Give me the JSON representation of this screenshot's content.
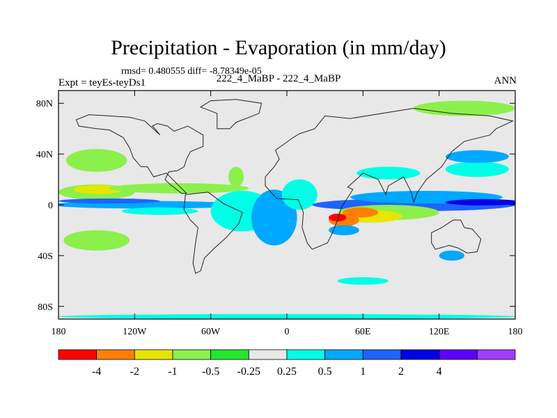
{
  "chart_data": {
    "type": "heatmap",
    "title": "Precipitation - Evaporation (in mm/day)",
    "stats_text": "rmsd= 0.480555  diff= -8.78349e-05",
    "left_label": "Expt = teyEs-teyDs1",
    "center_label": "222_4_MaBP - 222_4_MaBP",
    "right_label": "ANN",
    "x_range": [
      -180,
      180
    ],
    "y_range": [
      -90,
      90
    ],
    "x_ticks": [
      {
        "value": -180,
        "label": "180"
      },
      {
        "value": -120,
        "label": "120W"
      },
      {
        "value": -60,
        "label": "60W"
      },
      {
        "value": 0,
        "label": "0"
      },
      {
        "value": 60,
        "label": "60E"
      },
      {
        "value": 120,
        "label": "120E"
      },
      {
        "value": 180,
        "label": "180"
      }
    ],
    "y_ticks": [
      {
        "value": 80,
        "label": "80N"
      },
      {
        "value": 40,
        "label": "40N"
      },
      {
        "value": 0,
        "label": "0"
      },
      {
        "value": -40,
        "label": "40S"
      },
      {
        "value": -80,
        "label": "80S"
      }
    ],
    "colorbar": {
      "colors": [
        "#ff0000",
        "#ff8000",
        "#e6e600",
        "#8cf04c",
        "#22e82e",
        "#e8e8e8",
        "#00ffe6",
        "#00a8ff",
        "#1e64ff",
        "#0000e6",
        "#5b00ff",
        "#a23cff"
      ],
      "labels": [
        "-4",
        "-2",
        "-1",
        "-0.5",
        "-0.25",
        "0.25",
        "0.5",
        "1",
        "2",
        "4"
      ]
    },
    "background_color": "#e8e8e8",
    "anomaly_regions": [
      {
        "lon": -150,
        "lat": 10,
        "lonw": 30,
        "latw": 6,
        "color": "#8cf04c"
      },
      {
        "lon": -148,
        "lat": 12,
        "lonw": 20,
        "latw": 3.5,
        "color": "#e6e600"
      },
      {
        "lon": -150,
        "lat": 35,
        "lonw": 24,
        "latw": 9,
        "color": "#8cf04c"
      },
      {
        "lon": -150,
        "lat": -28,
        "lonw": 26,
        "latw": 8,
        "color": "#8cf04c"
      },
      {
        "lon": -85,
        "lat": 13,
        "lonw": 55,
        "latw": 4,
        "color": "#8cf04c"
      },
      {
        "lon": -110,
        "lat": 0,
        "lonw": 75,
        "latw": 3,
        "color": "#00a8ff"
      },
      {
        "lon": -140,
        "lat": 3,
        "lonw": 40,
        "latw": 2,
        "color": "#1e64ff"
      },
      {
        "lon": -100,
        "lat": -5,
        "lonw": 30,
        "latw": 3,
        "color": "#00ffe6"
      },
      {
        "lon": -35,
        "lat": -5,
        "lonw": 25,
        "latw": 16,
        "color": "#00ffe6"
      },
      {
        "lon": -10,
        "lat": -10,
        "lonw": 18,
        "latw": 22,
        "color": "#00a8ff"
      },
      {
        "lon": 10,
        "lat": 8,
        "lonw": 14,
        "latw": 12,
        "color": "#00ffe6"
      },
      {
        "lon": 100,
        "lat": 0,
        "lonw": 80,
        "latw": 5,
        "color": "#1e64ff"
      },
      {
        "lon": 110,
        "lat": 6,
        "lonw": 60,
        "latw": 5,
        "color": "#00a8ff"
      },
      {
        "lon": 155,
        "lat": 2,
        "lonw": 30,
        "latw": 2.5,
        "color": "#0000e6"
      },
      {
        "lon": 80,
        "lat": -6,
        "lonw": 40,
        "latw": 6,
        "color": "#8cf04c"
      },
      {
        "lon": 65,
        "lat": -9,
        "lonw": 26,
        "latw": 5,
        "color": "#e6e600"
      },
      {
        "lon": 58,
        "lat": -6,
        "lonw": 14,
        "latw": 4,
        "color": "#ff8000"
      },
      {
        "lon": 45,
        "lat": -12,
        "lonw": 12,
        "latw": 5,
        "color": "#ff8000"
      },
      {
        "lon": 40,
        "lat": -10,
        "lonw": 7,
        "latw": 3,
        "color": "#ff0000"
      },
      {
        "lon": 45,
        "lat": -20,
        "lonw": 12,
        "latw": 4,
        "color": "#00a8ff"
      },
      {
        "lon": 150,
        "lat": 28,
        "lonw": 25,
        "latw": 6,
        "color": "#00ffe6"
      },
      {
        "lon": 150,
        "lat": 38,
        "lonw": 25,
        "latw": 5,
        "color": "#00a8ff"
      },
      {
        "lon": 140,
        "lat": 76,
        "lonw": 40,
        "latw": 6,
        "color": "#8cf04c"
      },
      {
        "lon": -40,
        "lat": 22,
        "lonw": 6,
        "latw": 8,
        "color": "#8cf04c"
      },
      {
        "lon": 80,
        "lat": 25,
        "lonw": 25,
        "latw": 5,
        "color": "#00ffe6"
      },
      {
        "lon": 130,
        "lat": -40,
        "lonw": 10,
        "latw": 4,
        "color": "#00a8ff"
      },
      {
        "lon": 60,
        "lat": -60,
        "lonw": 20,
        "latw": 3,
        "color": "#00ffe6"
      },
      {
        "lon": 0,
        "lat": -88,
        "lonw": 180,
        "latw": 2,
        "color": "#00ffe6"
      }
    ],
    "land_outlines": [
      {
        "name": "north-america",
        "points": [
          [
            -100,
            55
          ],
          [
            -104,
            60
          ],
          [
            -106,
            62
          ],
          [
            -102,
            64
          ],
          [
            -94,
            62
          ],
          [
            -89,
            58
          ],
          [
            -78,
            62
          ],
          [
            -66,
            55
          ],
          [
            -66,
            46
          ],
          [
            -76,
            42
          ],
          [
            -79,
            36
          ],
          [
            -81,
            30
          ],
          [
            -86,
            27
          ],
          [
            -93,
            26
          ],
          [
            -96,
            20
          ],
          [
            -92,
            16
          ],
          [
            -83,
            9
          ],
          [
            -79,
            9
          ],
          [
            -85,
            15
          ],
          [
            -95,
            25
          ],
          [
            -105,
            22
          ],
          [
            -110,
            30
          ],
          [
            -115,
            30
          ],
          [
            -121,
            37
          ],
          [
            -124,
            45
          ],
          [
            -129,
            53
          ],
          [
            -140,
            59
          ],
          [
            -150,
            60
          ],
          [
            -164,
            62
          ],
          [
            -166,
            67
          ],
          [
            -156,
            71
          ],
          [
            -140,
            70
          ],
          [
            -124,
            69
          ],
          [
            -112,
            66
          ],
          [
            -100,
            55
          ]
        ]
      },
      {
        "name": "south-america",
        "points": [
          [
            -80,
            8
          ],
          [
            -62,
            10
          ],
          [
            -50,
            1
          ],
          [
            -35,
            -6
          ],
          [
            -38,
            -15
          ],
          [
            -48,
            -26
          ],
          [
            -57,
            -34
          ],
          [
            -65,
            -42
          ],
          [
            -68,
            -52
          ],
          [
            -72,
            -54
          ],
          [
            -74,
            -46
          ],
          [
            -72,
            -30
          ],
          [
            -70,
            -18
          ],
          [
            -76,
            -12
          ],
          [
            -81,
            -4
          ],
          [
            -80,
            8
          ]
        ]
      },
      {
        "name": "afro-eurasia",
        "points": [
          [
            -17,
            15
          ],
          [
            -17,
            22
          ],
          [
            -10,
            30
          ],
          [
            -6,
            36
          ],
          [
            -9,
            43
          ],
          [
            -2,
            48
          ],
          [
            5,
            53
          ],
          [
            10,
            56
          ],
          [
            22,
            60
          ],
          [
            30,
            70
          ],
          [
            50,
            68
          ],
          [
            75,
            72
          ],
          [
            100,
            76
          ],
          [
            130,
            72
          ],
          [
            160,
            70
          ],
          [
            178,
            66
          ],
          [
            165,
            60
          ],
          [
            160,
            55
          ],
          [
            140,
            50
          ],
          [
            130,
            42
          ],
          [
            122,
            30
          ],
          [
            110,
            20
          ],
          [
            103,
            10
          ],
          [
            100,
            2
          ],
          [
            98,
            10
          ],
          [
            92,
            22
          ],
          [
            80,
            15
          ],
          [
            78,
            8
          ],
          [
            72,
            20
          ],
          [
            60,
            25
          ],
          [
            57,
            22
          ],
          [
            48,
            14
          ],
          [
            52,
            12
          ],
          [
            43,
            -2
          ],
          [
            40,
            -12
          ],
          [
            36,
            -22
          ],
          [
            32,
            -30
          ],
          [
            20,
            -35
          ],
          [
            16,
            -30
          ],
          [
            12,
            -18
          ],
          [
            13,
            -6
          ],
          [
            9,
            4
          ],
          [
            -8,
            5
          ],
          [
            -17,
            15
          ]
        ]
      },
      {
        "name": "australia",
        "points": [
          [
            114,
            -22
          ],
          [
            122,
            -18
          ],
          [
            131,
            -12
          ],
          [
            137,
            -12
          ],
          [
            140,
            -18
          ],
          [
            146,
            -19
          ],
          [
            153,
            -27
          ],
          [
            150,
            -37
          ],
          [
            142,
            -38
          ],
          [
            135,
            -34
          ],
          [
            128,
            -32
          ],
          [
            117,
            -35
          ],
          [
            114,
            -30
          ],
          [
            114,
            -22
          ]
        ]
      },
      {
        "name": "greenland",
        "points": [
          [
            -55,
            60
          ],
          [
            -45,
            60
          ],
          [
            -40,
            65
          ],
          [
            -22,
            72
          ],
          [
            -20,
            80
          ],
          [
            -40,
            83
          ],
          [
            -60,
            82
          ],
          [
            -68,
            77
          ],
          [
            -55,
            72
          ],
          [
            -55,
            60
          ]
        ]
      }
    ]
  }
}
